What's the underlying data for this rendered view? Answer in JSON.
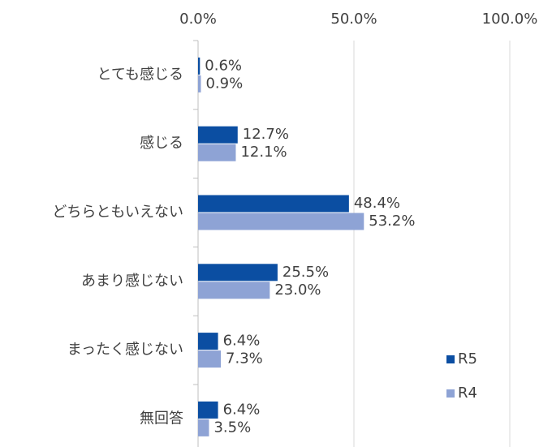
{
  "chart_data": {
    "type": "bar",
    "orientation": "horizontal",
    "categories": [
      "とても感じる",
      "感じる",
      "どちらともいえない",
      "あまり感じない",
      "まったく感じない",
      "無回答"
    ],
    "series": [
      {
        "name": "R5",
        "color": "#0b4ea2",
        "values": [
          0.6,
          12.7,
          48.4,
          25.5,
          6.4,
          6.4
        ],
        "value_labels": [
          "0.6%",
          "12.7%",
          "48.4%",
          "25.5%",
          "6.4%",
          "6.4%"
        ]
      },
      {
        "name": "R4",
        "color": "#8ea3d5",
        "values": [
          0.9,
          12.1,
          53.2,
          23.0,
          7.3,
          3.5
        ],
        "value_labels": [
          "0.9%",
          "12.1%",
          "53.2%",
          "23.0%",
          "7.3%",
          "3.5%"
        ]
      }
    ],
    "xlim": [
      0,
      100
    ],
    "xticks": [
      {
        "value": 0,
        "label": "0.0%"
      },
      {
        "value": 50,
        "label": "50.0%"
      },
      {
        "value": 100,
        "label": "100.0%"
      }
    ],
    "grid": true,
    "legend": "lower right"
  }
}
